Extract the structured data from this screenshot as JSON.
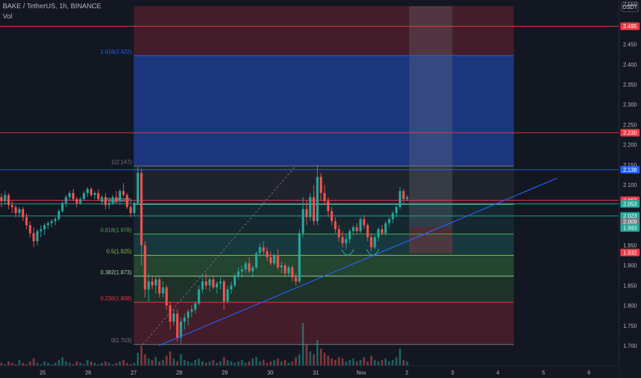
{
  "header": {
    "title": "BAKE / TetherUS, 1h, BINANCE",
    "vol_label": "Vol"
  },
  "colors": {
    "up": "#26a69a",
    "down": "#ef5350",
    "trend": "#2962ff",
    "bg": "#131722"
  },
  "chart_data": {
    "type": "candlestick",
    "currency": "USDT",
    "ylim": [
      1.688,
      2.545
    ],
    "y_ticks": [
      "2.550",
      "2.500",
      "2.450",
      "2.400",
      "2.350",
      "2.300",
      "2.250",
      "2.200",
      "2.150",
      "2.100",
      "2.050",
      "2.000",
      "1.950",
      "1.900",
      "1.850",
      "1.800",
      "1.750",
      "1.700"
    ],
    "y_tick_values": [
      2.55,
      2.5,
      2.45,
      2.4,
      2.35,
      2.3,
      2.25,
      2.2,
      2.15,
      2.1,
      2.05,
      2.0,
      1.95,
      1.9,
      1.85,
      1.8,
      1.75,
      1.7
    ],
    "x_ticks": [
      "25",
      "26",
      "27",
      "28",
      "29",
      "30",
      "31",
      "Nov",
      "2",
      "3",
      "4",
      "5",
      "6"
    ],
    "x_tick_days": [
      25,
      26,
      27,
      28,
      29,
      30,
      31,
      32,
      33,
      34,
      35,
      36,
      37
    ],
    "fib_levels": [
      {
        "label": "1.618(2.422)",
        "value": 2.422,
        "color": "#2962ff"
      },
      {
        "label": "1(2.147)",
        "value": 2.147,
        "color": "#787b86"
      },
      {
        "label": "0.786(2.052)",
        "value": 2.052,
        "color": "#89c0b8"
      },
      {
        "label": "0.618(1.978)",
        "value": 1.978,
        "color": "#4caf50"
      },
      {
        "label": "0.5(1.925)",
        "value": 1.925,
        "color": "#8bc34a"
      },
      {
        "label": "0.382(1.873)",
        "value": 1.873,
        "color": "#a5d6a7"
      },
      {
        "label": "0.236(1.808)",
        "value": 1.808,
        "color": "#f23645"
      },
      {
        "label": "0(1.703)",
        "value": 1.703,
        "color": "#787b86"
      }
    ],
    "horizontal_lines": [
      {
        "value": 2.495,
        "color": "#f23645"
      },
      {
        "value": 2.23,
        "color": "#f23645"
      },
      {
        "value": 2.138,
        "color": "#2962ff"
      },
      {
        "value": 2.062,
        "color": "#f23645"
      },
      {
        "value": 2.053,
        "color": "#26a69a"
      },
      {
        "value": 2.023,
        "color": "#26a69a"
      }
    ],
    "price_badges": [
      {
        "text": "2.495",
        "value": 2.495,
        "color": "#f23645"
      },
      {
        "text": "2.230",
        "value": 2.23,
        "color": "#f23645"
      },
      {
        "text": "2.138",
        "value": 2.138,
        "color": "#2962ff"
      },
      {
        "text": "2.062",
        "value": 2.062,
        "color": "#f23645"
      },
      {
        "text": "2.053",
        "value": 2.053,
        "color": "#26a69a"
      },
      {
        "text": "2.023",
        "value": 2.023,
        "color": "#26a69a"
      },
      {
        "text": "2.009",
        "value": 2.009,
        "color": "#787b86"
      },
      {
        "text": "1.993",
        "value": 1.993,
        "color": "#26a69a"
      },
      {
        "text": "1.932",
        "value": 1.932,
        "color": "#f23645"
      }
    ],
    "trendline": {
      "from": {
        "day": 27.55,
        "price": 1.7
      },
      "to": {
        "day": 36.3,
        "price": 2.117
      }
    },
    "dashed_line": {
      "from": {
        "day": 27.2,
        "price": 1.703
      },
      "to": {
        "day": 30.55,
        "price": 2.147
      }
    },
    "fib_range_days": [
      27.0,
      35.35
    ],
    "zones": [
      {
        "from_price": 2.545,
        "to_price": 2.422,
        "color": "#f23645",
        "opacity": 0.22
      },
      {
        "from_price": 2.422,
        "to_price": 2.147,
        "color": "#2962ff",
        "opacity": 0.42
      },
      {
        "from_price": 2.147,
        "to_price": 2.052,
        "color": "#787b86",
        "opacity": 0.12
      },
      {
        "from_price": 2.052,
        "to_price": 1.978,
        "color": "#26a69a",
        "opacity": 0.12
      },
      {
        "from_price": 1.978,
        "to_price": 1.925,
        "color": "#26a69a",
        "opacity": 0.24
      },
      {
        "from_price": 1.925,
        "to_price": 1.873,
        "color": "#4caf50",
        "opacity": 0.3
      },
      {
        "from_price": 1.873,
        "to_price": 1.808,
        "color": "#4caf50",
        "opacity": 0.18
      },
      {
        "from_price": 1.808,
        "to_price": 1.703,
        "color": "#f23645",
        "opacity": 0.22
      }
    ],
    "position_box": {
      "from_day": 33.05,
      "to_day": 34.0,
      "top_price": 2.545,
      "mid_price": 1.995,
      "bottom_price": 1.93
    },
    "candles": [
      {
        "o": 2.07,
        "h": 2.08,
        "l": 2.045,
        "c": 2.06
      },
      {
        "o": 2.06,
        "h": 2.085,
        "l": 2.05,
        "c": 2.075
      },
      {
        "o": 2.075,
        "h": 2.08,
        "l": 2.04,
        "c": 2.05
      },
      {
        "o": 2.05,
        "h": 2.06,
        "l": 2.03,
        "c": 2.045
      },
      {
        "o": 2.045,
        "h": 2.05,
        "l": 2.02,
        "c": 2.03
      },
      {
        "o": 2.03,
        "h": 2.045,
        "l": 2.02,
        "c": 2.04
      },
      {
        "o": 2.04,
        "h": 2.045,
        "l": 2.01,
        "c": 2.02
      },
      {
        "o": 2.02,
        "h": 2.03,
        "l": 1.99,
        "c": 2.0
      },
      {
        "o": 2.0,
        "h": 2.01,
        "l": 1.97,
        "c": 1.98
      },
      {
        "o": 1.98,
        "h": 1.995,
        "l": 1.945,
        "c": 1.96
      },
      {
        "o": 1.96,
        "h": 1.99,
        "l": 1.95,
        "c": 1.985
      },
      {
        "o": 1.985,
        "h": 2.0,
        "l": 1.97,
        "c": 1.99
      },
      {
        "o": 1.99,
        "h": 2.005,
        "l": 1.975,
        "c": 2.0
      },
      {
        "o": 2.0,
        "h": 2.01,
        "l": 1.99,
        "c": 2.005
      },
      {
        "o": 2.005,
        "h": 2.015,
        "l": 1.995,
        "c": 2.01
      },
      {
        "o": 2.01,
        "h": 2.02,
        "l": 2.0,
        "c": 2.015
      },
      {
        "o": 2.015,
        "h": 2.04,
        "l": 2.01,
        "c": 2.035
      },
      {
        "o": 2.035,
        "h": 2.06,
        "l": 2.03,
        "c": 2.055
      },
      {
        "o": 2.055,
        "h": 2.075,
        "l": 2.045,
        "c": 2.07
      },
      {
        "o": 2.07,
        "h": 2.085,
        "l": 2.06,
        "c": 2.08
      },
      {
        "o": 2.08,
        "h": 2.09,
        "l": 2.06,
        "c": 2.065
      },
      {
        "o": 2.065,
        "h": 2.07,
        "l": 2.045,
        "c": 2.055
      },
      {
        "o": 2.055,
        "h": 2.07,
        "l": 2.05,
        "c": 2.065
      },
      {
        "o": 2.065,
        "h": 2.085,
        "l": 2.06,
        "c": 2.08
      },
      {
        "o": 2.08,
        "h": 2.095,
        "l": 2.07,
        "c": 2.09
      },
      {
        "o": 2.09,
        "h": 2.095,
        "l": 2.07,
        "c": 2.075
      },
      {
        "o": 2.075,
        "h": 2.085,
        "l": 2.065,
        "c": 2.08
      },
      {
        "o": 2.08,
        "h": 2.09,
        "l": 2.06,
        "c": 2.065
      },
      {
        "o": 2.065,
        "h": 2.075,
        "l": 2.05,
        "c": 2.07
      },
      {
        "o": 2.07,
        "h": 2.08,
        "l": 2.04,
        "c": 2.05
      },
      {
        "o": 2.05,
        "h": 2.06,
        "l": 2.04,
        "c": 2.055
      },
      {
        "o": 2.055,
        "h": 2.075,
        "l": 2.05,
        "c": 2.07
      },
      {
        "o": 2.07,
        "h": 2.085,
        "l": 2.055,
        "c": 2.06
      },
      {
        "o": 2.06,
        "h": 2.09,
        "l": 2.05,
        "c": 2.085
      },
      {
        "o": 2.085,
        "h": 2.105,
        "l": 2.07,
        "c": 2.075
      },
      {
        "o": 2.075,
        "h": 2.08,
        "l": 2.04,
        "c": 2.045
      },
      {
        "o": 2.045,
        "h": 2.05,
        "l": 2.02,
        "c": 2.03
      },
      {
        "o": 2.03,
        "h": 2.06,
        "l": 2.025,
        "c": 2.055
      },
      {
        "o": 2.055,
        "h": 2.145,
        "l": 2.05,
        "c": 2.13
      },
      {
        "o": 2.13,
        "h": 2.14,
        "l": 1.9,
        "c": 1.95
      },
      {
        "o": 1.95,
        "h": 1.96,
        "l": 1.82,
        "c": 1.84
      },
      {
        "o": 1.84,
        "h": 1.88,
        "l": 1.81,
        "c": 1.86
      },
      {
        "o": 1.86,
        "h": 1.875,
        "l": 1.84,
        "c": 1.85
      },
      {
        "o": 1.85,
        "h": 1.87,
        "l": 1.83,
        "c": 1.865
      },
      {
        "o": 1.865,
        "h": 1.87,
        "l": 1.82,
        "c": 1.83
      },
      {
        "o": 1.83,
        "h": 1.86,
        "l": 1.82,
        "c": 1.845
      },
      {
        "o": 1.845,
        "h": 1.85,
        "l": 1.79,
        "c": 1.8
      },
      {
        "o": 1.8,
        "h": 1.81,
        "l": 1.74,
        "c": 1.76
      },
      {
        "o": 1.76,
        "h": 1.79,
        "l": 1.75,
        "c": 1.78
      },
      {
        "o": 1.78,
        "h": 1.79,
        "l": 1.71,
        "c": 1.72
      },
      {
        "o": 1.72,
        "h": 1.77,
        "l": 1.705,
        "c": 1.76
      },
      {
        "o": 1.76,
        "h": 1.78,
        "l": 1.74,
        "c": 1.77
      },
      {
        "o": 1.77,
        "h": 1.79,
        "l": 1.75,
        "c": 1.785
      },
      {
        "o": 1.785,
        "h": 1.8,
        "l": 1.77,
        "c": 1.79
      },
      {
        "o": 1.79,
        "h": 1.81,
        "l": 1.78,
        "c": 1.805
      },
      {
        "o": 1.805,
        "h": 1.85,
        "l": 1.8,
        "c": 1.84
      },
      {
        "o": 1.84,
        "h": 1.87,
        "l": 1.83,
        "c": 1.86
      },
      {
        "o": 1.86,
        "h": 1.88,
        "l": 1.84,
        "c": 1.85
      },
      {
        "o": 1.85,
        "h": 1.87,
        "l": 1.835,
        "c": 1.865
      },
      {
        "o": 1.865,
        "h": 1.875,
        "l": 1.84,
        "c": 1.845
      },
      {
        "o": 1.845,
        "h": 1.86,
        "l": 1.83,
        "c": 1.855
      },
      {
        "o": 1.855,
        "h": 1.87,
        "l": 1.84,
        "c": 1.86
      },
      {
        "o": 1.86,
        "h": 1.865,
        "l": 1.79,
        "c": 1.81
      },
      {
        "o": 1.81,
        "h": 1.85,
        "l": 1.805,
        "c": 1.84
      },
      {
        "o": 1.84,
        "h": 1.86,
        "l": 1.83,
        "c": 1.85
      },
      {
        "o": 1.85,
        "h": 1.88,
        "l": 1.845,
        "c": 1.875
      },
      {
        "o": 1.875,
        "h": 1.895,
        "l": 1.865,
        "c": 1.885
      },
      {
        "o": 1.885,
        "h": 1.9,
        "l": 1.87,
        "c": 1.89
      },
      {
        "o": 1.89,
        "h": 1.91,
        "l": 1.88,
        "c": 1.905
      },
      {
        "o": 1.905,
        "h": 1.92,
        "l": 1.88,
        "c": 1.885
      },
      {
        "o": 1.885,
        "h": 1.9,
        "l": 1.87,
        "c": 1.895
      },
      {
        "o": 1.895,
        "h": 1.935,
        "l": 1.89,
        "c": 1.93
      },
      {
        "o": 1.93,
        "h": 1.955,
        "l": 1.92,
        "c": 1.945
      },
      {
        "o": 1.945,
        "h": 1.96,
        "l": 1.925,
        "c": 1.935
      },
      {
        "o": 1.935,
        "h": 1.945,
        "l": 1.91,
        "c": 1.92
      },
      {
        "o": 1.92,
        "h": 1.935,
        "l": 1.9,
        "c": 1.905
      },
      {
        "o": 1.905,
        "h": 1.93,
        "l": 1.9,
        "c": 1.925
      },
      {
        "o": 1.925,
        "h": 1.94,
        "l": 1.89,
        "c": 1.895
      },
      {
        "o": 1.895,
        "h": 1.91,
        "l": 1.88,
        "c": 1.9
      },
      {
        "o": 1.9,
        "h": 1.905,
        "l": 1.87,
        "c": 1.88
      },
      {
        "o": 1.88,
        "h": 1.9,
        "l": 1.875,
        "c": 1.895
      },
      {
        "o": 1.895,
        "h": 1.9,
        "l": 1.86,
        "c": 1.87
      },
      {
        "o": 1.87,
        "h": 1.88,
        "l": 1.85,
        "c": 1.86
      },
      {
        "o": 1.86,
        "h": 1.99,
        "l": 1.855,
        "c": 1.98
      },
      {
        "o": 1.98,
        "h": 2.07,
        "l": 1.97,
        "c": 2.04
      },
      {
        "o": 2.04,
        "h": 2.06,
        "l": 2.0,
        "c": 2.02
      },
      {
        "o": 2.02,
        "h": 2.08,
        "l": 2.01,
        "c": 2.07
      },
      {
        "o": 2.07,
        "h": 2.1,
        "l": 2.0,
        "c": 2.01
      },
      {
        "o": 2.01,
        "h": 2.15,
        "l": 2.0,
        "c": 2.12
      },
      {
        "o": 2.12,
        "h": 2.13,
        "l": 2.06,
        "c": 2.08
      },
      {
        "o": 2.08,
        "h": 2.1,
        "l": 2.05,
        "c": 2.06
      },
      {
        "o": 2.06,
        "h": 2.07,
        "l": 2.02,
        "c": 2.035
      },
      {
        "o": 2.035,
        "h": 2.045,
        "l": 2.0,
        "c": 2.01
      },
      {
        "o": 2.01,
        "h": 2.02,
        "l": 1.98,
        "c": 1.99
      },
      {
        "o": 1.99,
        "h": 2.0,
        "l": 1.96,
        "c": 1.97
      },
      {
        "o": 1.97,
        "h": 1.985,
        "l": 1.945,
        "c": 1.955
      },
      {
        "o": 1.955,
        "h": 1.975,
        "l": 1.94,
        "c": 1.965
      },
      {
        "o": 1.965,
        "h": 1.99,
        "l": 1.955,
        "c": 1.985
      },
      {
        "o": 1.985,
        "h": 2.0,
        "l": 1.975,
        "c": 1.995
      },
      {
        "o": 1.995,
        "h": 2.005,
        "l": 1.98,
        "c": 1.985
      },
      {
        "o": 1.985,
        "h": 2.02,
        "l": 1.98,
        "c": 2.015
      },
      {
        "o": 2.015,
        "h": 2.025,
        "l": 1.99,
        "c": 2.0
      },
      {
        "o": 2.0,
        "h": 2.005,
        "l": 1.96,
        "c": 1.97
      },
      {
        "o": 1.97,
        "h": 1.98,
        "l": 1.935,
        "c": 1.945
      },
      {
        "o": 1.945,
        "h": 1.975,
        "l": 1.94,
        "c": 1.97
      },
      {
        "o": 1.97,
        "h": 1.995,
        "l": 1.96,
        "c": 1.99
      },
      {
        "o": 1.99,
        "h": 2.0,
        "l": 1.975,
        "c": 1.98
      },
      {
        "o": 1.98,
        "h": 2.01,
        "l": 1.975,
        "c": 2.005
      },
      {
        "o": 2.005,
        "h": 2.02,
        "l": 1.995,
        "c": 2.015
      },
      {
        "o": 2.015,
        "h": 2.035,
        "l": 2.005,
        "c": 2.03
      },
      {
        "o": 2.03,
        "h": 2.05,
        "l": 2.02,
        "c": 2.045
      },
      {
        "o": 2.045,
        "h": 2.095,
        "l": 2.04,
        "c": 2.085
      },
      {
        "o": 2.085,
        "h": 2.09,
        "l": 2.055,
        "c": 2.065
      },
      {
        "o": 2.065,
        "h": 2.075,
        "l": 2.06,
        "c": 2.07
      }
    ],
    "volume": [
      2,
      1,
      3,
      2,
      1,
      4,
      2,
      1,
      3,
      5,
      2,
      1,
      3,
      2,
      1,
      2,
      4,
      6,
      3,
      2,
      1,
      3,
      2,
      1,
      4,
      3,
      2,
      1,
      2,
      3,
      2,
      1,
      2,
      3,
      4,
      2,
      1,
      2,
      9,
      14,
      8,
      5,
      4,
      6,
      3,
      4,
      7,
      10,
      5,
      3,
      8,
      4,
      3,
      2,
      4,
      5,
      3,
      2,
      3,
      4,
      2,
      3,
      6,
      4,
      3,
      2,
      3,
      4,
      2,
      3,
      5,
      6,
      3,
      4,
      2,
      3,
      4,
      5,
      3,
      4,
      2,
      3,
      6,
      8,
      30,
      15,
      10,
      8,
      18,
      12,
      9,
      7,
      5,
      4,
      6,
      5,
      3,
      4,
      5,
      3,
      4,
      6,
      3,
      7,
      4,
      3,
      4,
      5,
      3,
      4,
      6,
      12,
      4,
      3
    ]
  }
}
